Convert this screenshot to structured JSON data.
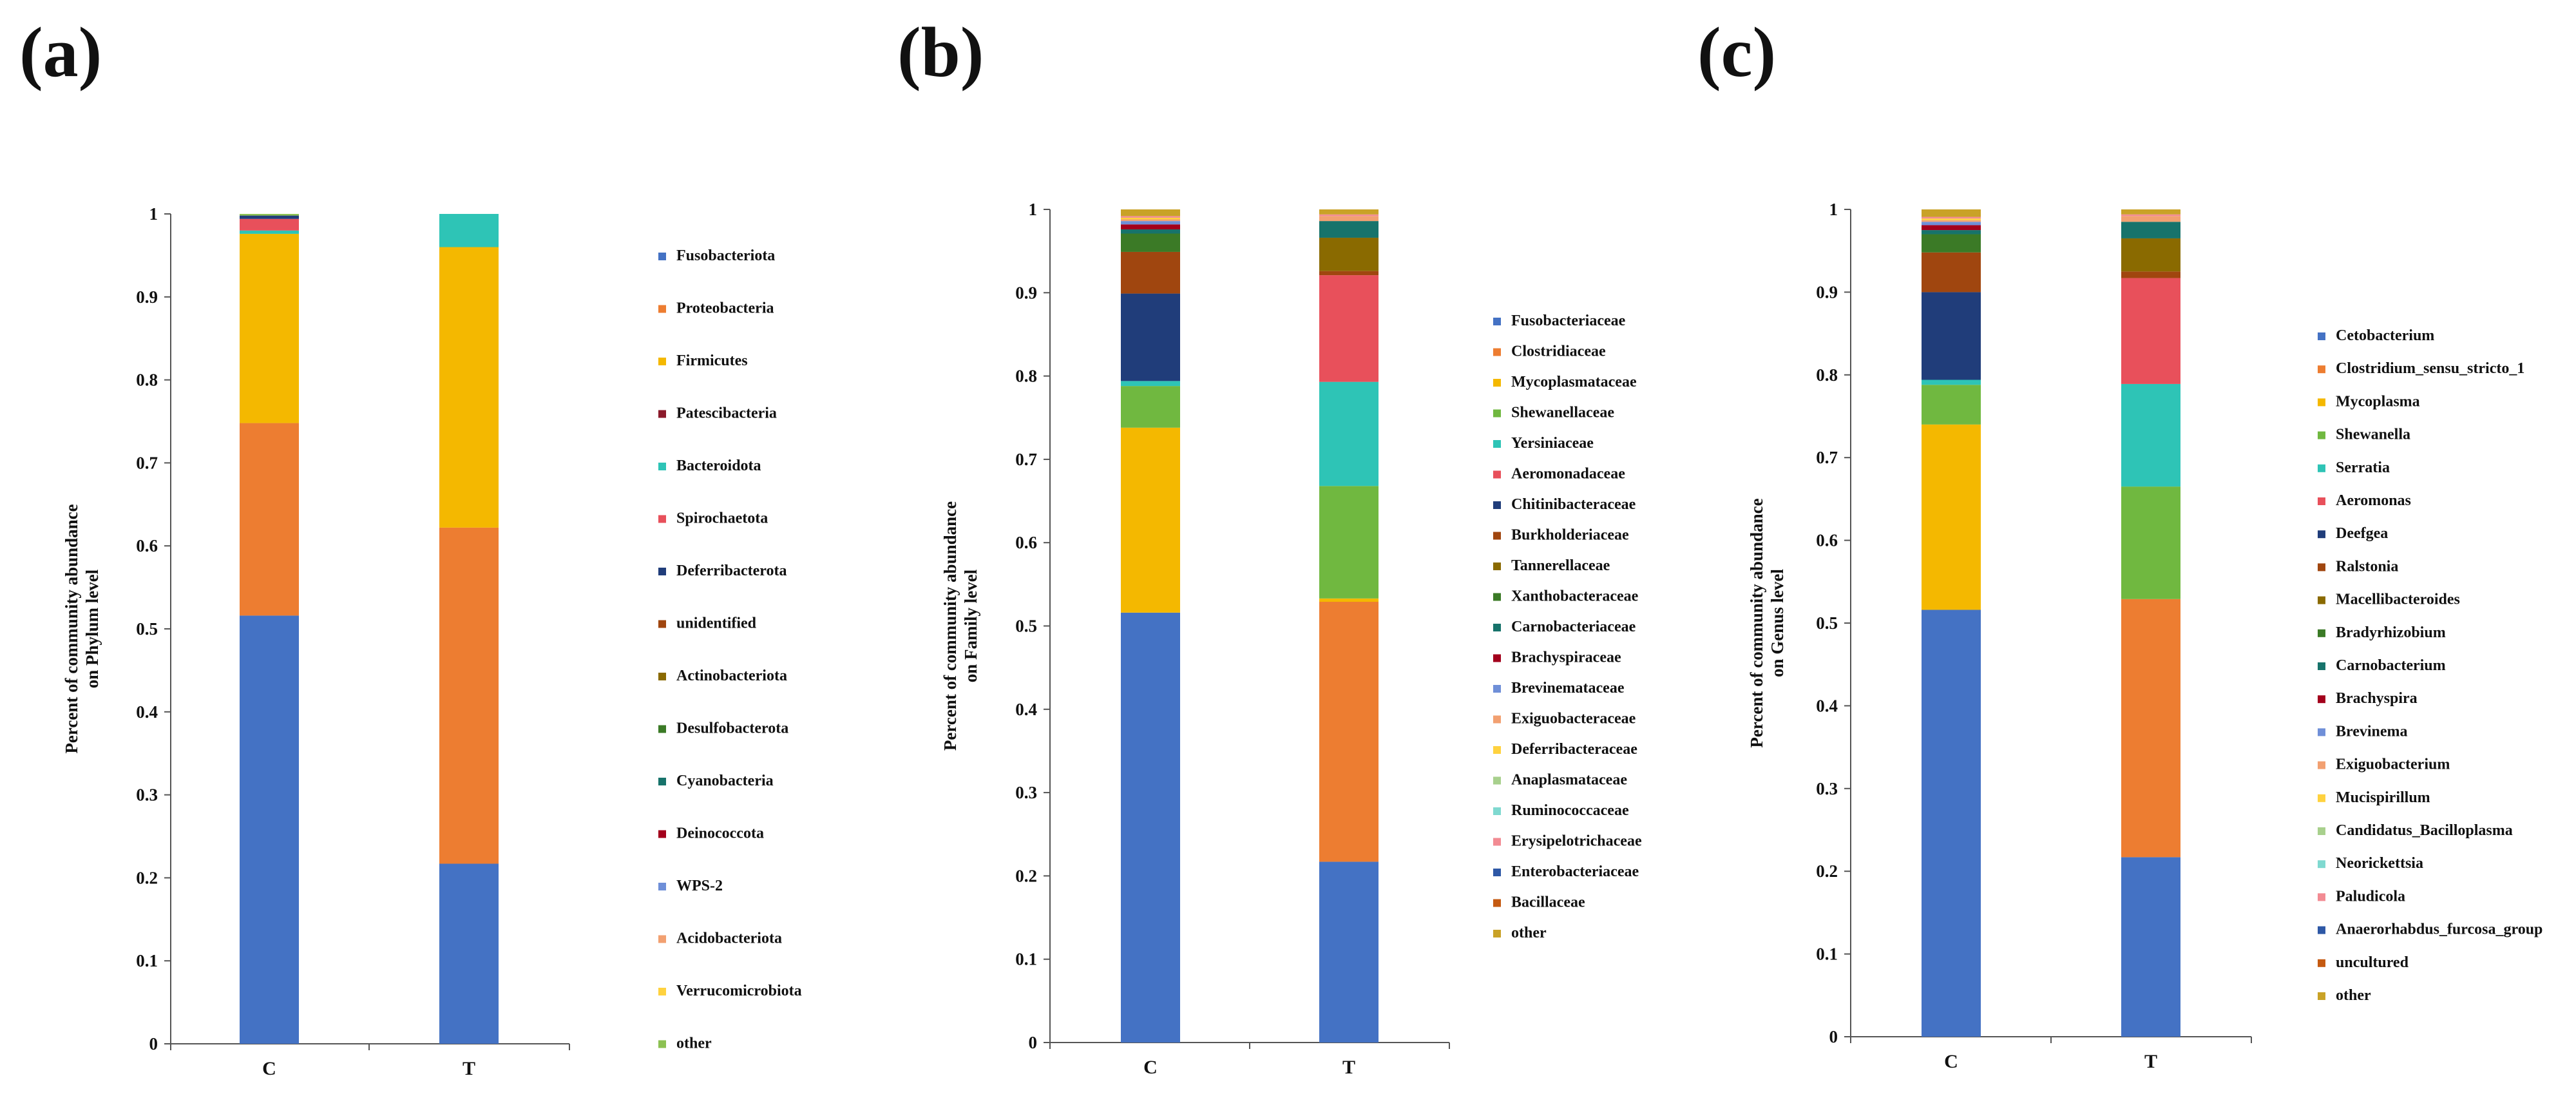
{
  "chart_data": [
    {
      "panel_label": "(a)",
      "type": "bar",
      "stacked": true,
      "ylabel_line1": "Percent of community abundance",
      "ylabel_line2": "on Phylum level",
      "ylim": [
        0,
        1
      ],
      "yticks": [
        "0",
        "0.1",
        "0.2",
        "0.3",
        "0.4",
        "0.5",
        "0.6",
        "0.7",
        "0.8",
        "0.9",
        "1"
      ],
      "categories": [
        "C",
        "T"
      ],
      "legend_position": "right",
      "series": [
        {
          "name": "Fusobacteriota",
          "color": "#4472C4",
          "values": [
            0.516,
            0.217
          ]
        },
        {
          "name": "Proteobacteria",
          "color": "#ED7D31",
          "values": [
            0.232,
            0.405
          ]
        },
        {
          "name": "Firmicutes",
          "color": "#F4B800",
          "values": [
            0.228,
            0.338
          ]
        },
        {
          "name": "Patescibacteria",
          "color": "#8B1A2B",
          "values": [
            0.0,
            0.0
          ]
        },
        {
          "name": "Bacteroidota",
          "color": "#2EC4B6",
          "values": [
            0.004,
            0.04
          ]
        },
        {
          "name": "Spirochaetota",
          "color": "#E8505B",
          "values": [
            0.014,
            0.0
          ]
        },
        {
          "name": "Deferribacterota",
          "color": "#203D7A",
          "values": [
            0.004,
            0.0
          ]
        },
        {
          "name": "unidentified",
          "color": "#A0460F",
          "values": [
            0.0,
            0.0
          ]
        },
        {
          "name": "Actinobacteriota",
          "color": "#8A6A00",
          "values": [
            0.0,
            0.0
          ]
        },
        {
          "name": "Desulfobacterota",
          "color": "#3B7A26",
          "values": [
            0.0,
            0.0
          ]
        },
        {
          "name": "Cyanobacteria",
          "color": "#17736B",
          "values": [
            0.0,
            0.0
          ]
        },
        {
          "name": "Deinococcota",
          "color": "#A3001C",
          "values": [
            0.0,
            0.0
          ]
        },
        {
          "name": "WPS-2",
          "color": "#6F8FD8",
          "values": [
            0.0,
            0.0
          ]
        },
        {
          "name": "Acidobacteriota",
          "color": "#F2A071",
          "values": [
            0.0,
            0.0
          ]
        },
        {
          "name": "Verrucomicrobiota",
          "color": "#FFD23F",
          "values": [
            0.0,
            0.0
          ]
        },
        {
          "name": "other",
          "color": "#8CC152",
          "values": [
            0.002,
            0.0
          ]
        }
      ]
    },
    {
      "panel_label": "(b)",
      "type": "bar",
      "stacked": true,
      "ylabel_line1": "Percent of community abundance",
      "ylabel_line2": "on Family level",
      "ylim": [
        0,
        1
      ],
      "yticks": [
        "0",
        "0.1",
        "0.2",
        "0.3",
        "0.4",
        "0.5",
        "0.6",
        "0.7",
        "0.8",
        "0.9",
        "1"
      ],
      "categories": [
        "C",
        "T"
      ],
      "legend_position": "right",
      "series": [
        {
          "name": "Fusobacteriaceae",
          "color": "#4472C4",
          "values": [
            0.516,
            0.217
          ]
        },
        {
          "name": "Clostridiaceae",
          "color": "#ED7D31",
          "values": [
            0.0,
            0.312
          ]
        },
        {
          "name": "Mycoplasmataceae",
          "color": "#F4B800",
          "values": [
            0.222,
            0.004
          ]
        },
        {
          "name": "Shewanellaceae",
          "color": "#70B840",
          "values": [
            0.05,
            0.135
          ]
        },
        {
          "name": "Yersiniaceae",
          "color": "#2EC4B6",
          "values": [
            0.006,
            0.125
          ]
        },
        {
          "name": "Aeromonadaceae",
          "color": "#E8505B",
          "values": [
            0.0,
            0.128
          ]
        },
        {
          "name": "Chitinibacteraceae",
          "color": "#203D7A",
          "values": [
            0.105,
            0.0
          ]
        },
        {
          "name": "Burkholderiaceae",
          "color": "#A0460F",
          "values": [
            0.05,
            0.005
          ]
        },
        {
          "name": "Tannerellaceae",
          "color": "#8A6A00",
          "values": [
            0.0,
            0.04
          ]
        },
        {
          "name": "Xanthobacteraceae",
          "color": "#3B7A26",
          "values": [
            0.022,
            0.0
          ]
        },
        {
          "name": "Carnobacteriaceae",
          "color": "#17736B",
          "values": [
            0.005,
            0.02
          ]
        },
        {
          "name": "Brachyspiraceae",
          "color": "#A3001C",
          "values": [
            0.006,
            0.0
          ]
        },
        {
          "name": "Brevinemataceae",
          "color": "#6F8FD8",
          "values": [
            0.004,
            0.0
          ]
        },
        {
          "name": "Exiguobacteraceae",
          "color": "#F2A071",
          "values": [
            0.002,
            0.006
          ]
        },
        {
          "name": "Deferribacteraceae",
          "color": "#FFD23F",
          "values": [
            0.002,
            0.0
          ]
        },
        {
          "name": "Anaplasmataceae",
          "color": "#A8D08D",
          "values": [
            0.0,
            0.0
          ]
        },
        {
          "name": "Ruminococcaceae",
          "color": "#7FD9D0",
          "values": [
            0.0,
            0.0
          ]
        },
        {
          "name": "Erysipelotrichaceae",
          "color": "#F28B93",
          "values": [
            0.002,
            0.002
          ]
        },
        {
          "name": "Enterobacteriaceae",
          "color": "#2E58A6",
          "values": [
            0.0,
            0.0
          ]
        },
        {
          "name": "Bacillaceae",
          "color": "#C55A11",
          "values": [
            0.0,
            0.0
          ]
        },
        {
          "name": "other",
          "color": "#C9A227",
          "values": [
            0.008,
            0.006
          ]
        }
      ]
    },
    {
      "panel_label": "(c)",
      "type": "bar",
      "stacked": true,
      "ylabel_line1": "Percent of community abundance",
      "ylabel_line2": "on Genus level",
      "ylim": [
        0,
        1
      ],
      "yticks": [
        "0",
        "0.1",
        "0.2",
        "0.3",
        "0.4",
        "0.5",
        "0.6",
        "0.7",
        "0.8",
        "0.9",
        "1"
      ],
      "categories": [
        "C",
        "T"
      ],
      "legend_position": "right",
      "series": [
        {
          "name": "Cetobacterium",
          "color": "#4472C4",
          "values": [
            0.516,
            0.217
          ]
        },
        {
          "name": "Clostridium_sensu_stricto_1",
          "color": "#ED7D31",
          "values": [
            0.0,
            0.312
          ]
        },
        {
          "name": "Mycoplasma",
          "color": "#F4B800",
          "values": [
            0.224,
            0.0
          ]
        },
        {
          "name": "Shewanella",
          "color": "#70B840",
          "values": [
            0.048,
            0.136
          ]
        },
        {
          "name": "Serratia",
          "color": "#2EC4B6",
          "values": [
            0.006,
            0.124
          ]
        },
        {
          "name": "Aeromonas",
          "color": "#E8505B",
          "values": [
            0.0,
            0.128
          ]
        },
        {
          "name": "Deefgea",
          "color": "#203D7A",
          "values": [
            0.106,
            0.0
          ]
        },
        {
          "name": "Ralstonia",
          "color": "#A0460F",
          "values": [
            0.048,
            0.008
          ]
        },
        {
          "name": "Macellibacteroides",
          "color": "#8A6A00",
          "values": [
            0.0,
            0.04
          ]
        },
        {
          "name": "Bradyrhizobium",
          "color": "#3B7A26",
          "values": [
            0.022,
            0.0
          ]
        },
        {
          "name": "Carnobacterium",
          "color": "#17736B",
          "values": [
            0.005,
            0.02
          ]
        },
        {
          "name": "Brachyspira",
          "color": "#A3001C",
          "values": [
            0.006,
            0.0
          ]
        },
        {
          "name": "Brevinema",
          "color": "#6F8FD8",
          "values": [
            0.004,
            0.0
          ]
        },
        {
          "name": "Exiguobacterium",
          "color": "#F2A071",
          "values": [
            0.002,
            0.007
          ]
        },
        {
          "name": "Mucispirillum",
          "color": "#FFD23F",
          "values": [
            0.002,
            0.0
          ]
        },
        {
          "name": "Candidatus_Bacilloplasma",
          "color": "#A8D08D",
          "values": [
            0.0,
            0.0
          ]
        },
        {
          "name": "Neorickettsia",
          "color": "#7FD9D0",
          "values": [
            0.0,
            0.0
          ]
        },
        {
          "name": "Paludicola",
          "color": "#F28B93",
          "values": [
            0.002,
            0.002
          ]
        },
        {
          "name": "Anaerorhabdus_furcosa_group",
          "color": "#2E58A6",
          "values": [
            0.0,
            0.0
          ]
        },
        {
          "name": "uncultured",
          "color": "#C55A11",
          "values": [
            0.0,
            0.0
          ]
        },
        {
          "name": "other",
          "color": "#C9A227",
          "values": [
            0.009,
            0.006
          ]
        }
      ]
    }
  ]
}
